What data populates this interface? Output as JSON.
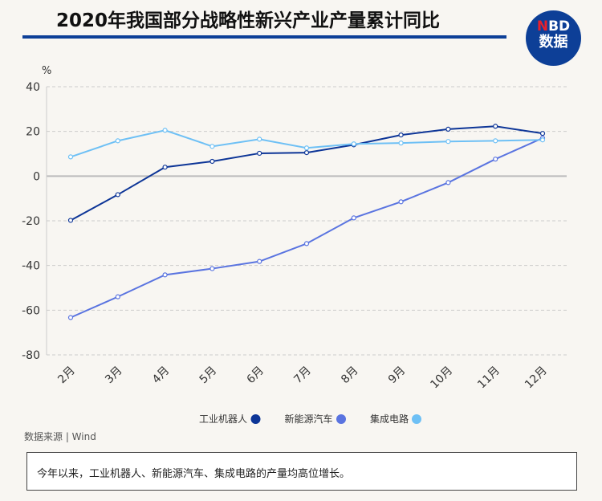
{
  "header": {
    "title": "2020年我国部分战略性新兴产业产量累计同比",
    "logo_top": "NBD",
    "logo_bottom": "数据"
  },
  "source": "数据来源 | Wind",
  "note": "今年以来，工业机器人、新能源汽车、集成电路的产量均高位增长。",
  "chart_data": {
    "type": "line",
    "title": "2020年我国部分战略性新兴产业产量累计同比",
    "ylabel": "%",
    "ylim": [
      -80,
      40
    ],
    "yticks": [
      40,
      20,
      0,
      -20,
      -40,
      -60,
      -80
    ],
    "categories": [
      "2月",
      "3月",
      "4月",
      "5月",
      "6月",
      "7月",
      "8月",
      "9月",
      "10月",
      "11月",
      "12月"
    ],
    "legend_position": "bottom",
    "series": [
      {
        "name": "工业机器人",
        "color": "#0d3597",
        "values": [
          -19.8,
          -8.3,
          4.0,
          6.6,
          10.2,
          10.5,
          14.0,
          18.4,
          21.0,
          22.3,
          19.1
        ]
      },
      {
        "name": "新能源汽车",
        "color": "#5a74e0",
        "values": [
          -63.3,
          -54.0,
          -44.2,
          -41.4,
          -38.2,
          -30.2,
          -18.7,
          -11.5,
          -2.9,
          7.6,
          17.0
        ]
      },
      {
        "name": "集成电路",
        "color": "#6ec0f5",
        "values": [
          8.6,
          15.8,
          20.5,
          13.3,
          16.5,
          12.6,
          14.4,
          14.8,
          15.5,
          15.8,
          16.2
        ]
      }
    ]
  }
}
